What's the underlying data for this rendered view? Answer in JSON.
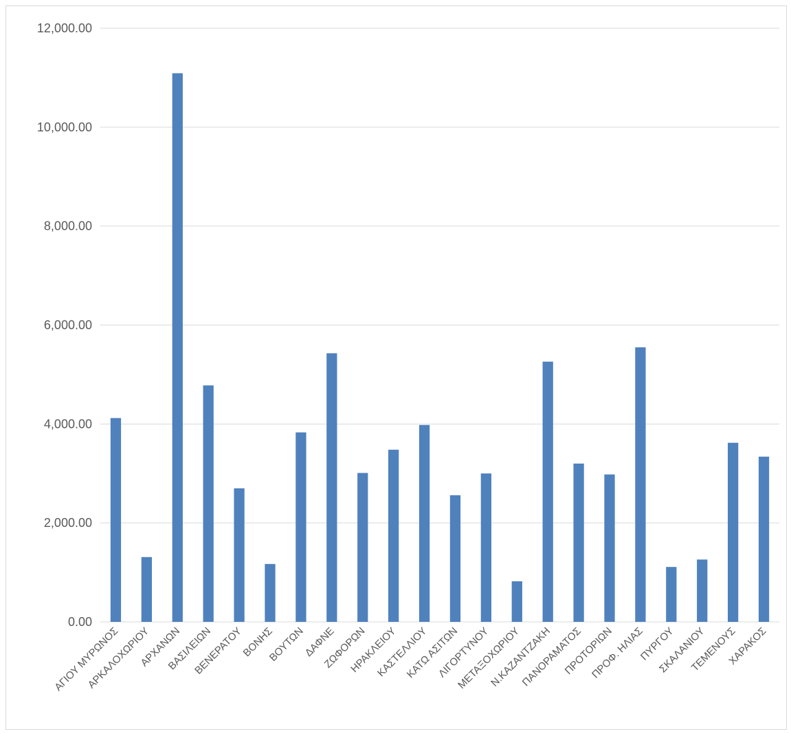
{
  "chart_data": {
    "type": "bar",
    "categories": [
      "ΑΓΙΟΥ ΜΥΡΩΝΟΣ",
      "ΑΡΚΑΛΟΧΩΡΙΟΥ",
      "ΑΡΧΑΝΩΝ",
      "ΒΑΣΙΛΕΙΩΝ",
      "ΒΕΝΕΡΑΤΟΥ",
      "ΒΟΝΗΣ",
      "ΒΟΥΤΩΝ",
      "ΔΑΦΝΕ",
      "ΖΩΦΟΡΩΝ",
      "ΗΡΑΚΛΕΙΟΥ",
      "ΚΑΣΤΕΛΛΙΟΥ",
      "ΚΑΤΩ ΑΣΙΤΩΝ",
      "ΛΙΓΟΡΤΥΝΟΥ",
      "ΜΕΤΑΞΟΧΩΡΙΟΥ",
      "Ν.ΚΑΖΑΝΤΖΑΚΗ",
      "ΠΑΝΟΡΑΜΑΤΟΣ",
      "ΠΡΟΤΟΡΙΩΝ",
      "ΠΡΟΦ. ΗΛΙΑΣ",
      "ΠΥΡΓΟΥ",
      "ΣΚΑΛΑΝΙΟΥ",
      "ΤΕΜΕΝΟΥΣ",
      "ΧΑΡΑΚΟΣ"
    ],
    "values": [
      4120,
      1310,
      11090,
      4780,
      2700,
      1170,
      3830,
      5430,
      3010,
      3480,
      3980,
      2560,
      3000,
      820,
      5260,
      3200,
      2980,
      5550,
      1110,
      1260,
      3620,
      3340
    ],
    "yticks": [
      "0.00",
      "2,000.00",
      "4,000.00",
      "6,000.00",
      "8,000.00",
      "10,000.00",
      "12,000.00"
    ],
    "ylim": [
      0,
      12000
    ],
    "ytick_step": 2000,
    "title": "",
    "xlabel": "",
    "ylabel": "",
    "grid": true,
    "legend": "none",
    "bar_color": "#4f81bd",
    "grid_color": "#d9d9d9",
    "label_color": "#595959"
  }
}
